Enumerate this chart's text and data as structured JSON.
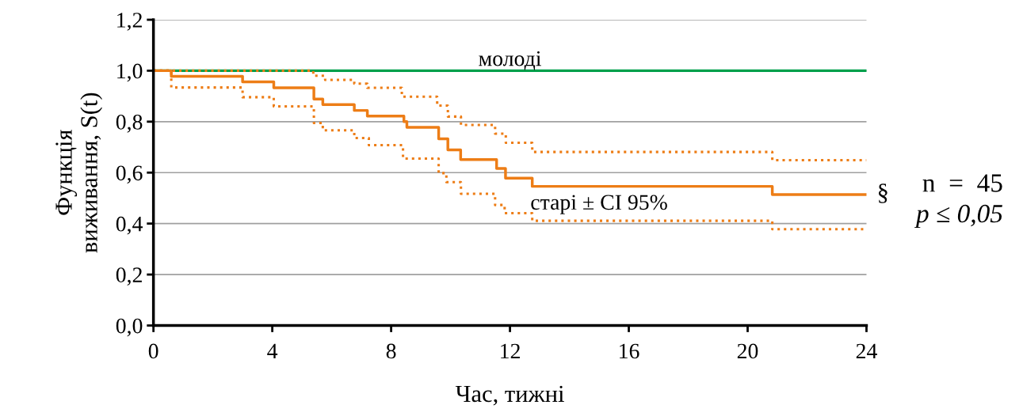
{
  "chart_data": {
    "type": "step",
    "xlabel": "Час, тижні",
    "ylabel": "Функція\nвиживання, S(t)",
    "xlim": [
      0,
      24
    ],
    "xticks": [
      0,
      4,
      8,
      12,
      16,
      20,
      24
    ],
    "ylim": [
      0,
      1.2
    ],
    "yticks": [
      {
        "value": 0,
        "label": "0,0"
      },
      {
        "value": 0.2,
        "label": "0,2"
      },
      {
        "value": 0.4,
        "label": "0,4"
      },
      {
        "value": 0.6,
        "label": "0,6"
      },
      {
        "value": 0.8,
        "label": "0,8"
      },
      {
        "value": 1.0,
        "label": "1,0"
      },
      {
        "value": 1.2,
        "label": "1,2"
      }
    ],
    "grid": "y",
    "legend": false,
    "marker": "none",
    "series": [
      {
        "name": "молоді",
        "color": "#00a04b",
        "line_style": "solid",
        "x": [
          0,
          24
        ],
        "values": [
          1.0,
          1.0
        ]
      },
      {
        "name": "старі ± CI 95%",
        "color": "#ed7d16",
        "line_style": "solid",
        "x": [
          0,
          0.6,
          3.0,
          4.05,
          5.4,
          5.7,
          6.76,
          7.2,
          8.43,
          8.53,
          9.6,
          9.91,
          10.34,
          11.55,
          11.85,
          12.75,
          20.83,
          24
        ],
        "values": [
          1.0,
          0.978,
          0.956,
          0.933,
          0.889,
          0.867,
          0.844,
          0.822,
          0.8,
          0.778,
          0.733,
          0.689,
          0.651,
          0.616,
          0.578,
          0.546,
          0.514,
          0.514
        ]
      },
      {
        "color": "#ed7d16",
        "line_style": "dotted",
        "x": [
          0,
          5.38,
          5.78,
          6.76,
          7.2,
          8.36,
          9.55,
          9.91,
          10.35,
          11.5,
          11.86,
          12.75,
          20.83,
          24
        ],
        "values": [
          1.0,
          0.98,
          0.964,
          0.949,
          0.933,
          0.898,
          0.863,
          0.82,
          0.787,
          0.753,
          0.717,
          0.681,
          0.649,
          0.649
        ]
      },
      {
        "color": "#ed7d16",
        "line_style": "dotted",
        "x": [
          0,
          0.6,
          3.0,
          4.05,
          5.4,
          5.7,
          6.76,
          7.25,
          8.4,
          9.6,
          9.86,
          10.35,
          11.5,
          11.82,
          12.75,
          20.83,
          24
        ],
        "values": [
          1.0,
          0.934,
          0.896,
          0.86,
          0.795,
          0.766,
          0.736,
          0.708,
          0.655,
          0.598,
          0.563,
          0.517,
          0.473,
          0.441,
          0.411,
          0.378,
          0.378
        ]
      }
    ],
    "annotations": [
      "§",
      "n  =  45",
      "p ≤ 0,05"
    ]
  }
}
